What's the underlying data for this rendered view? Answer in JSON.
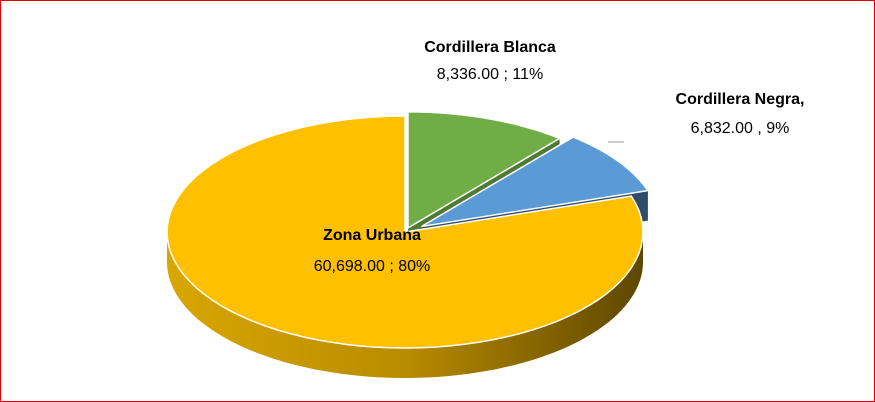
{
  "chart_data": {
    "type": "pie3d",
    "categories": [
      "Cordillera Blanca",
      "Cordillera Negra,",
      "Zona Urbana"
    ],
    "values": [
      8336,
      6832,
      60698
    ],
    "value_labels": [
      "8,336.00 ; 11%",
      "6,832.00 , 9%",
      "60,698.00 ; 80%"
    ],
    "colors": [
      "#70ad47",
      "#5b9bd5",
      "#ffc000"
    ]
  }
}
